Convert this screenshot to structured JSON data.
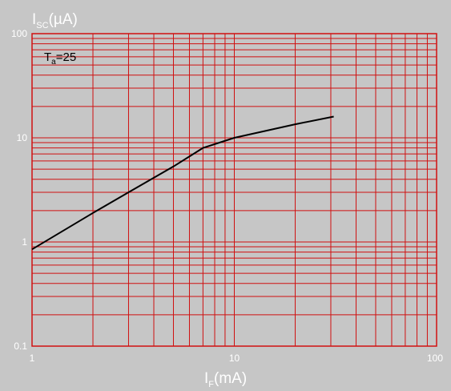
{
  "chart_data": {
    "type": "line",
    "xlabel": {
      "main": "I",
      "sub": "F",
      "unit": "(mA)"
    },
    "ylabel": {
      "main": "I",
      "sub": "SC",
      "unit": "(µA)"
    },
    "xscale": "log",
    "yscale": "log",
    "xlim": [
      1,
      100
    ],
    "ylim": [
      0.1,
      100
    ],
    "x_tick_labels": [
      "1",
      "10",
      "100"
    ],
    "y_tick_labels": [
      "0.1",
      "1",
      "10",
      "100"
    ],
    "grid": true,
    "annotation": {
      "main": "T",
      "sub": "a",
      "rest": "=25"
    },
    "series": [
      {
        "x": [
          1,
          2,
          3,
          5,
          7,
          10,
          20,
          31
        ],
        "y": [
          0.85,
          1.9,
          3.0,
          5.3,
          8.0,
          10.0,
          13.5,
          16.0
        ]
      }
    ],
    "colors": {
      "background": "#c6c6c6",
      "grid": "#d01010",
      "line": "#000000",
      "text": "#ffffff"
    }
  }
}
